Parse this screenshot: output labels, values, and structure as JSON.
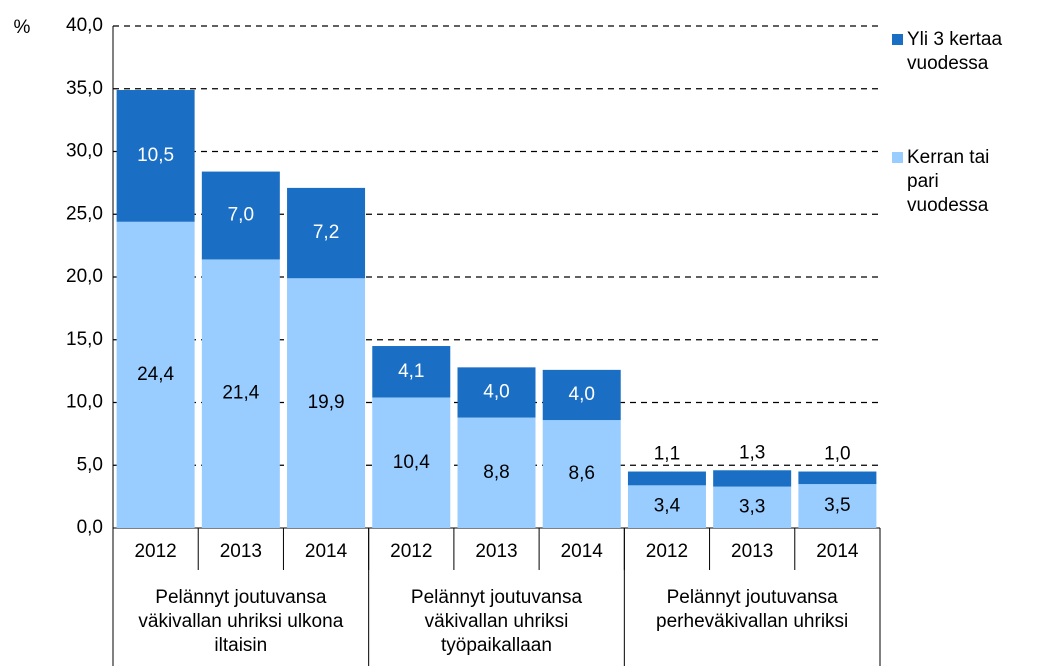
{
  "chart_data": {
    "type": "stacked-bar",
    "y_label": "%",
    "categories": [
      "2012",
      "2013",
      "2014",
      "2012",
      "2013",
      "2014",
      "2012",
      "2013",
      "2014"
    ],
    "groups": [
      "Pelännyt joutuvansa väkivallan uhriksi ulkona iltaisin",
      "Pelännyt joutuvansa väkivallan uhriksi työpaikallaan",
      "Pelännyt joutuvansa perheväkivallan uhriksi"
    ],
    "series": [
      {
        "name": "Kerran tai pari vuodessa",
        "color": "#99ccff",
        "values": [
          24.4,
          21.4,
          19.9,
          10.4,
          8.8,
          8.6,
          3.4,
          3.3,
          3.5
        ],
        "value_labels": [
          "24,4",
          "21,4",
          "19,9",
          "10,4",
          "8,8",
          "8,6",
          "3,4",
          "3,3",
          "3,5"
        ]
      },
      {
        "name": "Yli 3 kertaa vuodessa",
        "color": "#1a6fc4",
        "values": [
          10.5,
          7.0,
          7.2,
          4.1,
          4.0,
          4.0,
          1.1,
          1.3,
          1.0
        ],
        "value_labels": [
          "10,5",
          "7,0",
          "7,2",
          "4,1",
          "4,0",
          "4,0",
          "1,1",
          "1,3",
          "1,0"
        ]
      }
    ],
    "ylim": [
      0,
      40
    ],
    "yticks": [
      {
        "value": 0,
        "label": "0,0"
      },
      {
        "value": 5,
        "label": "5,0"
      },
      {
        "value": 10,
        "label": "10,0"
      },
      {
        "value": 15,
        "label": "15,0"
      },
      {
        "value": 20,
        "label": "20,0"
      },
      {
        "value": 25,
        "label": "25,0"
      },
      {
        "value": 30,
        "label": "30,0"
      },
      {
        "value": 35,
        "label": "35,0"
      },
      {
        "value": 40,
        "label": "40,0"
      }
    ],
    "grid": true
  }
}
